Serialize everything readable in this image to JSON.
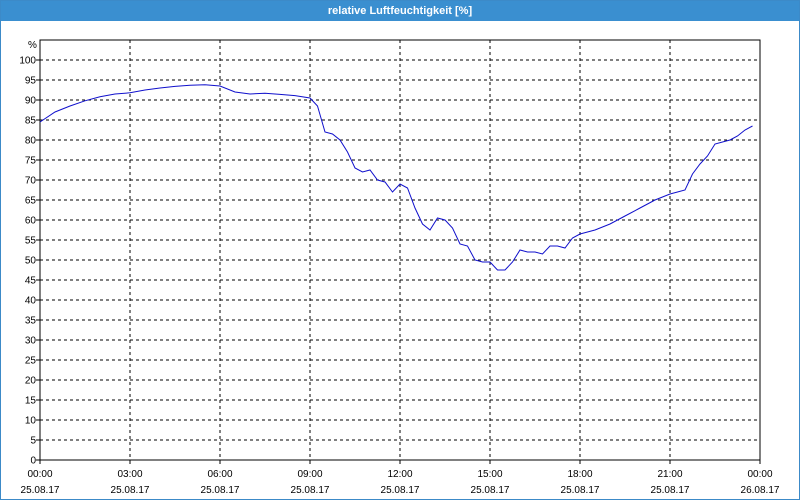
{
  "window": {
    "title": "relative Luftfeuchtigkeit [%]"
  },
  "colors": {
    "title_bar": "#3a8fd0",
    "line": "#1010cc",
    "grid": "#000000",
    "axis": "#000000"
  },
  "chart_data": {
    "type": "line",
    "title": "relative Luftfeuchtigkeit [%]",
    "ylabel": "%",
    "xlabel": "",
    "ylim": [
      0,
      100
    ],
    "y_ticks": [
      0,
      5,
      10,
      15,
      20,
      25,
      30,
      35,
      40,
      45,
      50,
      55,
      60,
      65,
      70,
      75,
      80,
      85,
      90,
      95,
      100
    ],
    "x_range_hours": [
      0,
      24
    ],
    "x_ticks": [
      {
        "time": "00:00",
        "date": "25.08.17"
      },
      {
        "time": "03:00",
        "date": "25.08.17"
      },
      {
        "time": "06:00",
        "date": "25.08.17"
      },
      {
        "time": "09:00",
        "date": "25.08.17"
      },
      {
        "time": "12:00",
        "date": "25.08.17"
      },
      {
        "time": "15:00",
        "date": "25.08.17"
      },
      {
        "time": "18:00",
        "date": "25.08.17"
      },
      {
        "time": "21:00",
        "date": "25.08.17"
      },
      {
        "time": "00:00",
        "date": "26.08.17"
      }
    ],
    "grid": true,
    "series": [
      {
        "x": [
          "00:00",
          "00:30",
          "01:00",
          "01:30",
          "02:00",
          "02:30",
          "03:00",
          "03:30",
          "04:00",
          "04:30",
          "05:00",
          "05:30",
          "06:00",
          "06:30",
          "07:00",
          "07:30",
          "08:00",
          "08:30",
          "09:00",
          "09:15",
          "09:30",
          "09:45",
          "10:00",
          "10:15",
          "10:30",
          "10:45",
          "11:00",
          "11:15",
          "11:30",
          "11:45",
          "12:00",
          "12:15",
          "12:30",
          "12:45",
          "13:00",
          "13:15",
          "13:30",
          "13:45",
          "14:00",
          "14:15",
          "14:30",
          "14:45",
          "15:00",
          "15:15",
          "15:30",
          "15:45",
          "16:00",
          "16:15",
          "16:30",
          "16:45",
          "17:00",
          "17:15",
          "17:30",
          "17:45",
          "18:00",
          "18:30",
          "19:00",
          "19:30",
          "20:00",
          "20:30",
          "21:00",
          "21:15",
          "21:30",
          "21:45",
          "22:00",
          "22:15",
          "22:30",
          "22:45",
          "23:00",
          "23:15",
          "23:30",
          "23:45"
        ],
        "y": [
          84.5,
          87.0,
          88.5,
          89.8,
          90.8,
          91.5,
          91.8,
          92.5,
          93.0,
          93.4,
          93.7,
          93.8,
          93.5,
          92.0,
          91.5,
          91.7,
          91.4,
          91.1,
          90.5,
          88.5,
          82.0,
          81.5,
          80.0,
          77.0,
          73.0,
          72.0,
          72.5,
          70.0,
          69.5,
          67.0,
          69.0,
          68.0,
          63.0,
          59.0,
          57.5,
          60.5,
          60.0,
          58.0,
          54.0,
          53.5,
          50.0,
          49.5,
          49.5,
          47.5,
          47.5,
          49.5,
          52.5,
          52.0,
          52.0,
          51.5,
          53.5,
          53.5,
          53.0,
          55.5,
          56.5,
          57.5,
          59.0,
          61.0,
          63.0,
          65.0,
          66.5,
          67.0,
          67.5,
          71.5,
          74.0,
          76.0,
          79.0,
          79.5,
          80.0,
          81.0,
          82.5,
          83.5
        ]
      }
    ]
  }
}
